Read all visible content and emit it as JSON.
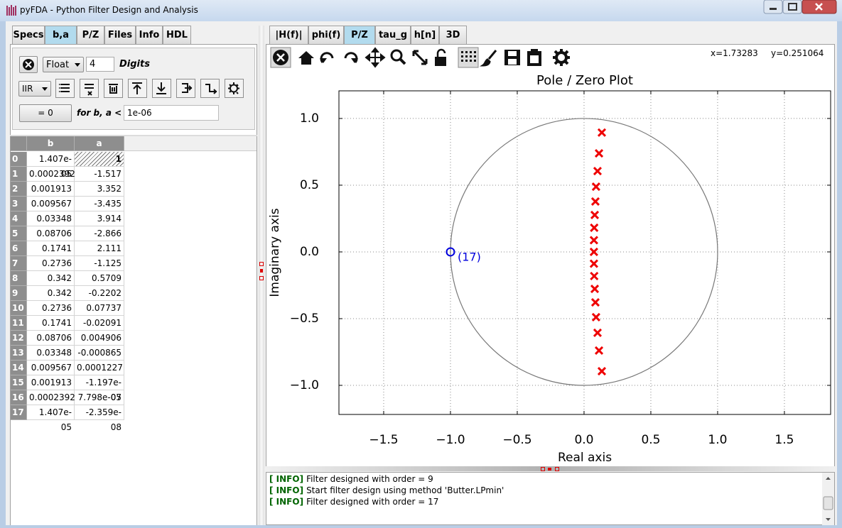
{
  "window": {
    "title": "pyFDA - Python Filter Design and Analysis"
  },
  "left_tabs": [
    "Specs",
    "b,a",
    "P/Z",
    "Files",
    "Info",
    "HDL"
  ],
  "left_active_tab": 1,
  "coeff_controls": {
    "format": "Float",
    "digits": "4",
    "digits_label": "Digits",
    "filter_type": "IIR",
    "set_zero_button": "= 0",
    "threshold_label": "for b, a <",
    "threshold": "1e-06"
  },
  "table": {
    "columns": [
      "b",
      "a"
    ],
    "row_labels": [
      "0",
      "1",
      "2",
      "3",
      "4",
      "5",
      "6",
      "7",
      "8",
      "9",
      "10",
      "11",
      "12",
      "13",
      "14",
      "15",
      "16",
      "17"
    ],
    "rows": [
      [
        "1.407e-05",
        "1"
      ],
      [
        "0.0002392",
        "-1.517"
      ],
      [
        "0.001913",
        "3.352"
      ],
      [
        "0.009567",
        "-3.435"
      ],
      [
        "0.03348",
        "3.914"
      ],
      [
        "0.08706",
        "-2.866"
      ],
      [
        "0.1741",
        "2.111"
      ],
      [
        "0.2736",
        "-1.125"
      ],
      [
        "0.342",
        "0.5709"
      ],
      [
        "0.342",
        "-0.2202"
      ],
      [
        "0.2736",
        "0.07737"
      ],
      [
        "0.1741",
        "-0.02091"
      ],
      [
        "0.08706",
        "0.004906"
      ],
      [
        "0.03348",
        "-0.000865"
      ],
      [
        "0.009567",
        "0.0001227"
      ],
      [
        "0.001913",
        "-1.197e-05"
      ],
      [
        "0.0002392",
        "7.798e-07"
      ],
      [
        "1.407e-05",
        "-2.359e-08"
      ]
    ]
  },
  "right_tabs": [
    "|H(f)|",
    "phi(f)",
    "P/Z",
    "tau_g",
    "h[n]",
    "3D"
  ],
  "right_active_tab": 2,
  "cursor": {
    "x": "x=1.73283",
    "y": "y=0.251064"
  },
  "plot": {
    "type": "scatter",
    "title": "Pole / Zero Plot",
    "xlabel": "Real axis",
    "ylabel": "Imaginary axis",
    "xlim": [
      -1.835,
      1.846
    ],
    "ylim": [
      -1.218,
      1.207
    ],
    "grid": true,
    "xticks": [
      {
        "value": -1.5,
        "label": "−1.5"
      },
      {
        "value": -1,
        "label": "−1.0"
      },
      {
        "value": -0.5,
        "label": "−0.5"
      },
      {
        "value": 0,
        "label": "0.0"
      },
      {
        "value": 0.5,
        "label": "0.5"
      },
      {
        "value": 1,
        "label": "1.0"
      },
      {
        "value": 1.5,
        "label": "1.5"
      }
    ],
    "yticks": [
      {
        "value": -1,
        "label": "−1.0"
      },
      {
        "value": -0.5,
        "label": "−0.5"
      },
      {
        "value": 0,
        "label": "0.0"
      },
      {
        "value": 0.5,
        "label": "0.5"
      },
      {
        "value": 1,
        "label": "1.0"
      }
    ],
    "poles": {
      "color": "#ee0000",
      "x": [
        0.133,
        0.112,
        0.101,
        0.09,
        0.085,
        0.08,
        0.076,
        0.074,
        0.074,
        0.074,
        0.076,
        0.08,
        0.085,
        0.09,
        0.101,
        0.112,
        0.133
      ],
      "y": [
        0.894,
        0.739,
        0.606,
        0.489,
        0.378,
        0.277,
        0.181,
        0.088,
        0,
        -0.088,
        -0.181,
        -0.277,
        -0.378,
        -0.489,
        -0.606,
        -0.739,
        -0.894
      ]
    },
    "zeros": {
      "color": "#0000dd",
      "x": [
        -1
      ],
      "y": [
        0
      ],
      "label": "(17)"
    }
  },
  "log": [
    {
      "level": "[ INFO]",
      "message": "Filter designed with order = 9"
    },
    {
      "level": "[ INFO]",
      "message": "Start filter design using method 'Butter.LPmin'"
    },
    {
      "level": "[ INFO]",
      "message": "Filter designed with order = 17"
    }
  ]
}
